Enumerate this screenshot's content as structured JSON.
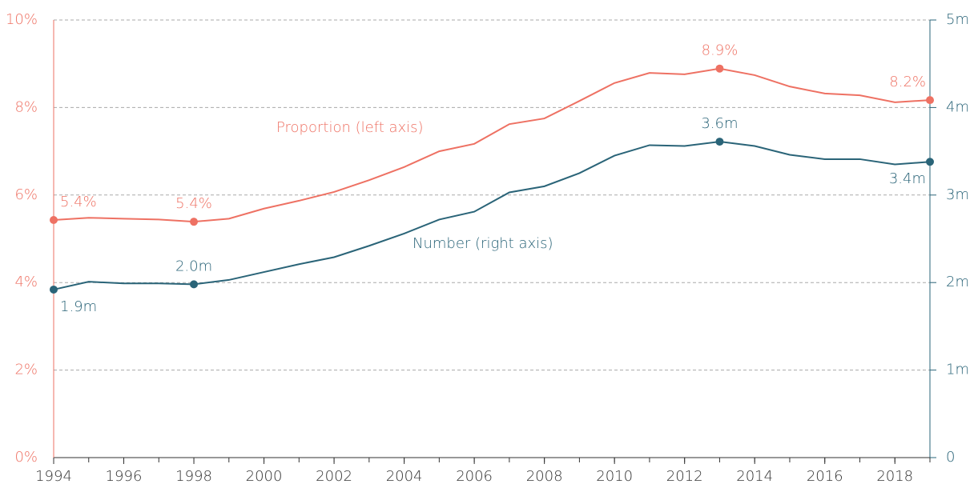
{
  "chart_data": {
    "type": "line",
    "x": [
      1994,
      1995,
      1996,
      1997,
      1998,
      1999,
      2000,
      2001,
      2002,
      2003,
      2004,
      2005,
      2006,
      2007,
      2008,
      2009,
      2010,
      2011,
      2012,
      2013,
      2014,
      2015,
      2016,
      2017,
      2018,
      2019
    ],
    "xlim": [
      1994,
      2019
    ],
    "xticks": [
      1994,
      1996,
      1998,
      2000,
      2002,
      2004,
      2006,
      2008,
      2010,
      2012,
      2014,
      2016,
      2018
    ],
    "ylim": [
      0,
      10
    ],
    "yticks": [
      {
        "value": 0,
        "label": "0%"
      },
      {
        "value": 2,
        "label": "2%"
      },
      {
        "value": 4,
        "label": "4%"
      },
      {
        "value": 6,
        "label": "6%"
      },
      {
        "value": 8,
        "label": "8%"
      },
      {
        "value": 10,
        "label": "10%"
      }
    ],
    "y2lim": [
      0,
      5
    ],
    "y2ticks": [
      0,
      {
        "value": 1,
        "label": "1m"
      },
      {
        "value": 2,
        "label": "2m"
      },
      {
        "value": 3,
        "label": "3m"
      },
      {
        "value": 4,
        "label": "4m"
      },
      {
        "value": 5,
        "label": "5m"
      }
    ],
    "grid": true,
    "annotations": [
      "Proportion (left axis)",
      "Number (right axis)"
    ],
    "series": [
      {
        "name": "Proportion",
        "color": "#ee7163",
        "values": [
          5.43,
          5.48,
          5.46,
          5.44,
          5.39,
          5.46,
          5.69,
          5.87,
          6.07,
          6.34,
          6.64,
          7.0,
          7.17,
          7.62,
          7.75,
          8.15,
          8.56,
          8.79,
          8.76,
          8.89,
          8.74,
          8.48,
          8.32,
          8.28,
          8.12,
          8.17
        ],
        "value_labels": [
          "5.4%",
          null,
          null,
          null,
          "5.4%",
          null,
          null,
          null,
          null,
          null,
          null,
          null,
          null,
          null,
          null,
          null,
          null,
          null,
          null,
          "8.9%",
          null,
          null,
          null,
          null,
          null,
          "8.2%"
        ]
      },
      {
        "name": "Number",
        "color": "#2a6478",
        "axis": "y2",
        "values": [
          1.92,
          2.01,
          1.99,
          1.99,
          1.98,
          2.03,
          2.12,
          2.21,
          2.29,
          2.42,
          2.56,
          2.72,
          2.81,
          3.03,
          3.1,
          3.25,
          3.45,
          3.57,
          3.56,
          3.61,
          3.56,
          3.46,
          3.41,
          3.41,
          3.35,
          3.38
        ],
        "value_labels": [
          "1.9m",
          null,
          null,
          null,
          "2.0m",
          null,
          null,
          null,
          null,
          null,
          null,
          null,
          null,
          null,
          null,
          null,
          null,
          null,
          null,
          "3.6m",
          null,
          null,
          null,
          null,
          null,
          "3.4m"
        ]
      }
    ]
  }
}
